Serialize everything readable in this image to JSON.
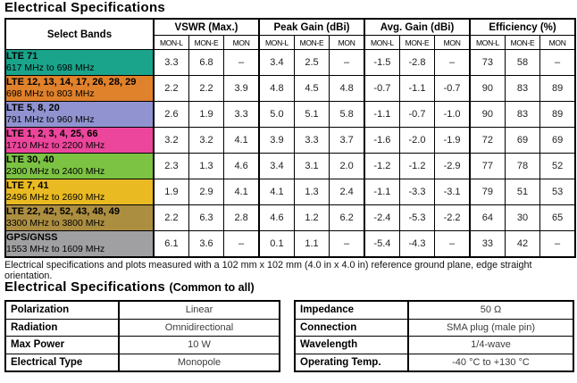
{
  "titles": {
    "main": "Electrical Specifications",
    "common_main": "Electrical Specifications",
    "common_suffix": "(Common to all)"
  },
  "footnote": "Electrical specifications and plots measured with a 102 mm x 102 mm (4.0 in x 4.0 in) reference ground plane, edge straight orientation.",
  "main_table": {
    "band_header": "Select Bands",
    "groups": [
      {
        "label": "VSWR (Max.)",
        "subs": [
          "MON-L",
          "MON-E",
          "MON"
        ]
      },
      {
        "label": "Peak Gain (dBi)",
        "subs": [
          "MON-L",
          "MON-E",
          "MON"
        ]
      },
      {
        "label": "Avg. Gain (dBi)",
        "subs": [
          "MON-L",
          "MON-E",
          "MON"
        ]
      },
      {
        "label": "Efficiency (%)",
        "subs": [
          "MON-L",
          "MON-E",
          "MON"
        ]
      }
    ],
    "rows": [
      {
        "band": "LTE 71",
        "range": "617 MHz to 698 MHz",
        "color": "#1aa48b",
        "values": [
          "3.3",
          "6.8",
          "–",
          "3.4",
          "2.5",
          "–",
          "-1.5",
          "-2.8",
          "–",
          "73",
          "58",
          "–"
        ]
      },
      {
        "band": "LTE 12, 13, 14, 17, 26, 28, 29",
        "range": "698 MHz to 803 MHz",
        "color": "#e0812b",
        "values": [
          "2.2",
          "2.2",
          "3.9",
          "4.8",
          "4.5",
          "4.8",
          "-0.7",
          "-1.1",
          "-0.7",
          "90",
          "83",
          "89"
        ]
      },
      {
        "band": "LTE 5, 8, 20",
        "range": "791 MHz to 960 MHz",
        "color": "#9093d0",
        "values": [
          "2.6",
          "1.9",
          "3.3",
          "5.0",
          "5.1",
          "5.8",
          "-1.1",
          "-0.7",
          "-1.0",
          "90",
          "83",
          "89"
        ]
      },
      {
        "band": "LTE 1, 2, 3, 4, 25, 66",
        "range": "1710 MHz to 2200 MHz",
        "color": "#ec469c",
        "values": [
          "3.2",
          "3.2",
          "4.1",
          "3.9",
          "3.3",
          "3.7",
          "-1.6",
          "-2.0",
          "-1.9",
          "72",
          "69",
          "69"
        ]
      },
      {
        "band": "LTE 30, 40",
        "range": "2300 MHz to 2400 MHz",
        "color": "#7cc243",
        "values": [
          "2.3",
          "1.3",
          "4.6",
          "3.4",
          "3.1",
          "2.0",
          "-1.2",
          "-1.2",
          "-2.9",
          "77",
          "78",
          "52"
        ]
      },
      {
        "band": "LTE 7, 41",
        "range": "2496 MHz to 2690 MHz",
        "color": "#e9ba22",
        "values": [
          "1.9",
          "2.9",
          "4.1",
          "4.1",
          "1.3",
          "2.4",
          "-1.1",
          "-3.3",
          "-3.1",
          "79",
          "51",
          "53"
        ]
      },
      {
        "band": "LTE 22, 42, 52, 43, 48, 49",
        "range": "3300 MHz to 3800 MHz",
        "color": "#ac8e41",
        "values": [
          "2.2",
          "6.3",
          "2.8",
          "4.6",
          "1.2",
          "6.2",
          "-2.4",
          "-5.3",
          "-2.2",
          "64",
          "30",
          "65"
        ]
      },
      {
        "band": "GPS/GNSS",
        "range": "1553 MHz to 1609 MHz",
        "color": "#a0a0a2",
        "values": [
          "6.1",
          "3.6",
          "–",
          "0.1",
          "1.1",
          "–",
          "-5.4",
          "-4.3",
          "–",
          "33",
          "42",
          "–"
        ]
      }
    ]
  },
  "common_table": {
    "left": [
      {
        "label": "Polarization",
        "value": "Linear"
      },
      {
        "label": "Radiation",
        "value": "Omnidirectional"
      },
      {
        "label": "Max Power",
        "value": "10 W"
      },
      {
        "label": "Electrical Type",
        "value": "Monopole"
      }
    ],
    "right": [
      {
        "label": "Impedance",
        "value": "50 Ω"
      },
      {
        "label": "Connection",
        "value": "SMA plug (male pin)"
      },
      {
        "label": "Wavelength",
        "value": "1/4-wave"
      },
      {
        "label": "Operating Temp.",
        "value": "-40 °C to +130 °C"
      }
    ]
  }
}
